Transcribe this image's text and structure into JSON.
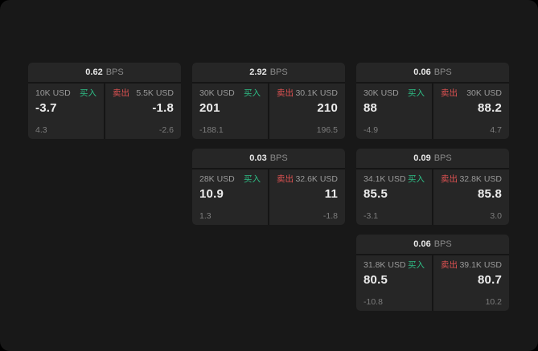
{
  "labels": {
    "buy": "买入",
    "sell": "卖出",
    "bps_unit": "BPS"
  },
  "colors": {
    "buy": "#2ebd85",
    "sell": "#e05252"
  },
  "cards": [
    {
      "bps": "0.62",
      "buy": {
        "amount": "10K USD",
        "price": "-3.7",
        "sub": "4.3"
      },
      "sell": {
        "amount": "5.5K USD",
        "price": "-1.8",
        "sub": "-2.6"
      }
    },
    {
      "bps": "2.92",
      "buy": {
        "amount": "30K USD",
        "price": "201",
        "sub": "-188.1"
      },
      "sell": {
        "amount": "30.1K USD",
        "price": "210",
        "sub": "196.5"
      }
    },
    {
      "bps": "0.06",
      "buy": {
        "amount": "30K USD",
        "price": "88",
        "sub": "-4.9"
      },
      "sell": {
        "amount": "30K USD",
        "price": "88.2",
        "sub": "4.7"
      }
    },
    {
      "bps": "0.03",
      "buy": {
        "amount": "28K USD",
        "price": "10.9",
        "sub": "1.3"
      },
      "sell": {
        "amount": "32.6K USD",
        "price": "11",
        "sub": "-1.8"
      }
    },
    {
      "bps": "0.09",
      "buy": {
        "amount": "34.1K USD",
        "price": "85.5",
        "sub": "-3.1"
      },
      "sell": {
        "amount": "32.8K USD",
        "price": "85.8",
        "sub": "3.0"
      }
    },
    {
      "bps": "0.06",
      "buy": {
        "amount": "31.8K USD",
        "price": "80.5",
        "sub": "-10.8"
      },
      "sell": {
        "amount": "39.1K USD",
        "price": "80.7",
        "sub": "10.2"
      }
    }
  ]
}
